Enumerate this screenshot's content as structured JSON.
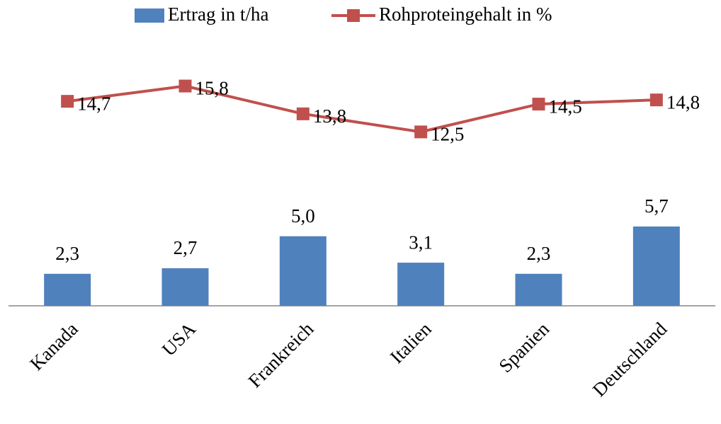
{
  "chart_data": {
    "type": "bar-line",
    "categories": [
      "Kanada",
      "USA",
      "Frankreich",
      "Italien",
      "Spanien",
      "Deutschland"
    ],
    "series": [
      {
        "name": "Ertrag in t/ha",
        "type": "bar",
        "color": "#4f81bd",
        "values": [
          2.3,
          2.7,
          5.0,
          3.1,
          2.3,
          5.7
        ],
        "value_labels": [
          "2,3",
          "2,7",
          "5,0",
          "3,1",
          "2,3",
          "5,7"
        ]
      },
      {
        "name": "Rohproteingehalt in %",
        "type": "line",
        "color": "#c0504d",
        "values": [
          14.7,
          15.8,
          13.8,
          12.5,
          14.5,
          14.8
        ],
        "value_labels": [
          "14,7",
          "15,8",
          "13,8",
          "12,5",
          "14,5",
          "14,8"
        ]
      }
    ],
    "ylim": [
      0,
      20
    ],
    "legend": "top"
  }
}
